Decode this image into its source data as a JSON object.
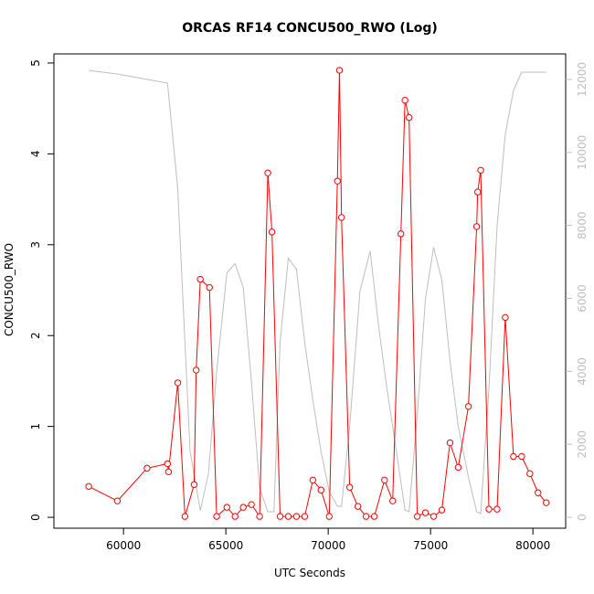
{
  "chart_data": {
    "type": "line",
    "title": "ORCAS RF14 CONCU500_RWO (Log)",
    "xlabel": "UTC Seconds",
    "ylabel": "CONCU500_RWO",
    "xlim": [
      56600,
      81600
    ],
    "ylim": [
      -0.12,
      5.1
    ],
    "y2lim": [
      -300,
      12700
    ],
    "x_ticks": [
      60000,
      65000,
      70000,
      75000,
      80000
    ],
    "x_tick_labels": [
      "60000",
      "65000",
      "70000",
      "75000",
      "80000"
    ],
    "y_ticks": [
      0,
      1,
      2,
      3,
      4,
      5
    ],
    "y_tick_labels": [
      "0",
      "1",
      "2",
      "3",
      "4",
      "5"
    ],
    "y2_ticks": [
      0,
      2000,
      4000,
      6000,
      8000,
      10000,
      12000
    ],
    "y2_tick_labels": [
      "0",
      "2000",
      "4000",
      "6000",
      "8000",
      "10000",
      "12000"
    ],
    "series": [
      {
        "color": "#ff0000",
        "marker": "open-circle",
        "axis": "left",
        "x": [
          58300,
          59700,
          61150,
          62150,
          62200,
          62650,
          63000,
          63450,
          63550,
          63750,
          64200,
          64550,
          65050,
          65450,
          65850,
          66250,
          66650,
          67050,
          67250,
          67650,
          68050,
          68450,
          68850,
          69250,
          69650,
          70050,
          70450,
          70550,
          70650,
          71050,
          71450,
          71850,
          72250,
          72750,
          73150,
          73550,
          73750,
          73950,
          74350,
          74750,
          75150,
          75550,
          75950,
          76350,
          76850,
          77250,
          77300,
          77450,
          77850,
          78250,
          78650,
          79050,
          79450,
          79850,
          80250,
          80650
        ],
        "y": [
          0.34,
          0.18,
          0.54,
          0.59,
          0.5,
          1.48,
          0.01,
          0.36,
          1.62,
          2.62,
          2.53,
          0.01,
          0.11,
          0.01,
          0.11,
          0.14,
          0.01,
          3.79,
          3.14,
          0.01,
          0.01,
          0.01,
          0.01,
          0.41,
          0.3,
          0.01,
          3.7,
          4.92,
          3.3,
          0.33,
          0.12,
          0.01,
          0.01,
          0.41,
          0.18,
          3.12,
          4.59,
          4.4,
          0.01,
          0.05,
          0.01,
          0.08,
          0.82,
          0.55,
          1.22,
          3.2,
          3.58,
          3.82,
          0.09,
          0.09,
          2.2,
          0.67,
          0.67,
          0.48,
          0.27,
          0.16
        ]
      },
      {
        "color": "#bebebe",
        "marker": "none",
        "axis": "right",
        "x": [
          58300,
          59700,
          61150,
          62150,
          62650,
          63250,
          63750,
          64150,
          64550,
          65050,
          65450,
          65850,
          66250,
          66650,
          67050,
          67350,
          67650,
          68050,
          68450,
          68850,
          69250,
          69650,
          70050,
          70450,
          70650,
          71050,
          71550,
          72050,
          72450,
          72850,
          73250,
          73750,
          73950,
          74350,
          74750,
          75150,
          75550,
          75950,
          76350,
          76850,
          77250,
          77450,
          77850,
          78250,
          78650,
          79050,
          79450,
          79850,
          80650
        ],
        "y": [
          12250,
          12150,
          12000,
          11900,
          9000,
          1800,
          180,
          1200,
          4000,
          6700,
          6950,
          6300,
          3700,
          800,
          150,
          150,
          4800,
          7100,
          6800,
          4800,
          3200,
          1800,
          700,
          300,
          300,
          2500,
          6200,
          7300,
          5300,
          3600,
          2100,
          200,
          150,
          2800,
          6000,
          7400,
          6500,
          4300,
          2500,
          1100,
          150,
          100,
          3500,
          8000,
          10500,
          11700,
          12200,
          12200,
          12200
        ]
      }
    ]
  }
}
